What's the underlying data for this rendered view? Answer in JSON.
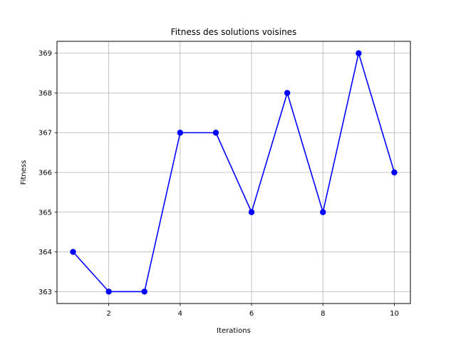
{
  "chart_data": {
    "type": "line",
    "title": "Fitness des solutions voisines",
    "xlabel": "Iterations",
    "ylabel": "Fitness",
    "x": [
      1,
      2,
      3,
      4,
      5,
      6,
      7,
      8,
      9,
      10
    ],
    "series": [
      {
        "values": [
          364,
          363,
          363,
          367,
          367,
          365,
          368,
          365,
          369,
          366
        ],
        "color": "#0000ff",
        "marker": "circle"
      }
    ],
    "xlim": [
      0.55,
      10.45
    ],
    "ylim": [
      362.7,
      369.3
    ],
    "xticks": [
      2,
      4,
      6,
      8,
      10
    ],
    "yticks": [
      363,
      364,
      365,
      366,
      367,
      368,
      369
    ],
    "grid": true,
    "legend": "none"
  }
}
